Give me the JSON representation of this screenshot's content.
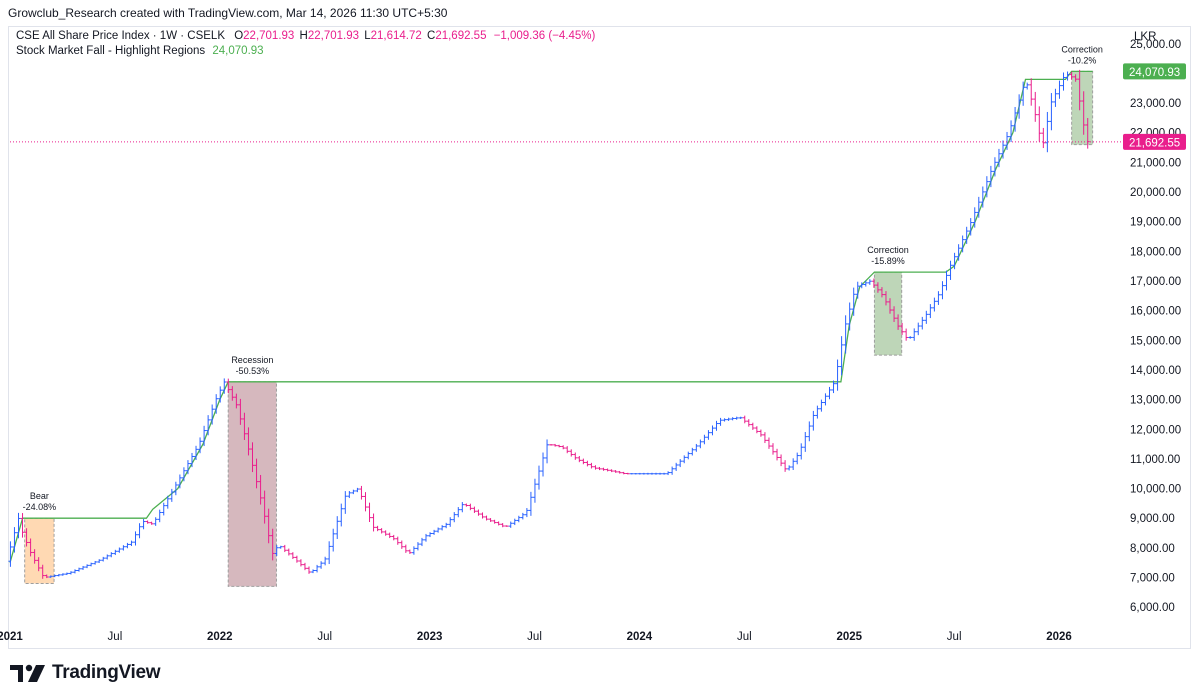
{
  "header": {
    "credit": "Growclub_Research created with TradingView.com, Mar 14, 2026 11:30 UTC+5:30"
  },
  "legend": {
    "symbol": "CSE All Share Price Index · 1W · CSELK",
    "open_label": "O",
    "open": "22,701.93",
    "high_label": "H",
    "high": "22,701.93",
    "low_label": "L",
    "low": "21,614.72",
    "close_label": "C",
    "close": "21,692.55",
    "change": "−1,009.36 (−4.45%)",
    "indicator_name": "Stock Market Fall - Highlight Regions",
    "indicator_value": "24,070.93"
  },
  "currency": "LKR",
  "branding": {
    "name": "TradingView"
  },
  "colors": {
    "up": "#2962ff",
    "down": "#e91e8c",
    "peak_line": "#4caf50",
    "bear_fill": "#ffcc99",
    "recession_fill": "#c8a0a8",
    "correction_fill": "#a8c8a0",
    "price_line": "#e91e8c",
    "indicator_tag": "#4caf50",
    "price_tag": "#e91e8c"
  },
  "chart_data": {
    "type": "ohlc",
    "title": "CSE All Share Price Index · 1W · CSELK",
    "ylabel": "LKR",
    "ylim": [
      5500,
      25600
    ],
    "xlim": [
      2021.0,
      2026.3
    ],
    "y_ticks": [
      "6,000.00",
      "7,000.00",
      "8,000.00",
      "9,000.00",
      "10,000.00",
      "11,000.00",
      "12,000.00",
      "13,000.00",
      "14,000.00",
      "15,000.00",
      "16,000.00",
      "17,000.00",
      "18,000.00",
      "19,000.00",
      "20,000.00",
      "21,000.00",
      "22,000.00",
      "23,000.00",
      "24,000.00",
      "25,000.00"
    ],
    "x_ticks": [
      {
        "t": 2021.0,
        "label": "2021",
        "bold": true
      },
      {
        "t": 2021.5,
        "label": "Jul",
        "bold": false
      },
      {
        "t": 2022.0,
        "label": "2022",
        "bold": true
      },
      {
        "t": 2022.5,
        "label": "Jul",
        "bold": false
      },
      {
        "t": 2023.0,
        "label": "2023",
        "bold": true
      },
      {
        "t": 2023.5,
        "label": "Jul",
        "bold": false
      },
      {
        "t": 2024.0,
        "label": "2024",
        "bold": true
      },
      {
        "t": 2024.5,
        "label": "Jul",
        "bold": false
      },
      {
        "t": 2025.0,
        "label": "2025",
        "bold": true
      },
      {
        "t": 2025.5,
        "label": "Jul",
        "bold": false
      },
      {
        "t": 2026.0,
        "label": "2026",
        "bold": true
      }
    ],
    "price_path": [
      [
        2021.0,
        7500
      ],
      [
        2021.06,
        9000
      ],
      [
        2021.08,
        8500
      ],
      [
        2021.12,
        7800
      ],
      [
        2021.18,
        7000
      ],
      [
        2021.22,
        7050
      ],
      [
        2021.3,
        7150
      ],
      [
        2021.45,
        7600
      ],
      [
        2021.6,
        8200
      ],
      [
        2021.65,
        8900
      ],
      [
        2021.7,
        8800
      ],
      [
        2021.8,
        10000
      ],
      [
        2021.92,
        11500
      ],
      [
        2022.0,
        13000
      ],
      [
        2022.04,
        13600
      ],
      [
        2022.1,
        12800
      ],
      [
        2022.15,
        11500
      ],
      [
        2022.22,
        9500
      ],
      [
        2022.27,
        7800
      ],
      [
        2022.3,
        8100
      ],
      [
        2022.38,
        7600
      ],
      [
        2022.45,
        7150
      ],
      [
        2022.52,
        7600
      ],
      [
        2022.62,
        9800
      ],
      [
        2022.68,
        10000
      ],
      [
        2022.75,
        8700
      ],
      [
        2022.85,
        8300
      ],
      [
        2022.92,
        7800
      ],
      [
        2023.0,
        8400
      ],
      [
        2023.1,
        8800
      ],
      [
        2023.18,
        9500
      ],
      [
        2023.28,
        9000
      ],
      [
        2023.38,
        8700
      ],
      [
        2023.48,
        9200
      ],
      [
        2023.58,
        11500
      ],
      [
        2023.65,
        11400
      ],
      [
        2023.72,
        11000
      ],
      [
        2023.8,
        10700
      ],
      [
        2023.88,
        10600
      ],
      [
        2023.95,
        10500
      ],
      [
        2024.0,
        10500
      ],
      [
        2024.15,
        10500
      ],
      [
        2024.3,
        11500
      ],
      [
        2024.4,
        12300
      ],
      [
        2024.5,
        12400
      ],
      [
        2024.6,
        11800
      ],
      [
        2024.72,
        10600
      ],
      [
        2024.78,
        11200
      ],
      [
        2024.85,
        12500
      ],
      [
        2024.95,
        13600
      ],
      [
        2025.0,
        15500
      ],
      [
        2025.05,
        16800
      ],
      [
        2025.12,
        17000
      ],
      [
        2025.18,
        16500
      ],
      [
        2025.25,
        15500
      ],
      [
        2025.3,
        15000
      ],
      [
        2025.38,
        15800
      ],
      [
        2025.45,
        16600
      ],
      [
        2025.5,
        17500
      ],
      [
        2025.6,
        19000
      ],
      [
        2025.7,
        20800
      ],
      [
        2025.78,
        22000
      ],
      [
        2025.86,
        23800
      ],
      [
        2025.9,
        22800
      ],
      [
        2025.94,
        21500
      ],
      [
        2025.98,
        23000
      ],
      [
        2026.05,
        24000
      ],
      [
        2026.1,
        23800
      ],
      [
        2026.15,
        21700
      ]
    ],
    "peak_line": [
      [
        2021.0,
        7500
      ],
      [
        2021.06,
        9000
      ],
      [
        2021.65,
        9000
      ],
      [
        2021.68,
        9300
      ],
      [
        2021.8,
        10000
      ],
      [
        2021.92,
        11500
      ],
      [
        2022.0,
        13000
      ],
      [
        2022.04,
        13600
      ],
      [
        2024.96,
        13600
      ],
      [
        2025.0,
        15500
      ],
      [
        2025.05,
        16800
      ],
      [
        2025.12,
        17300
      ],
      [
        2025.46,
        17300
      ],
      [
        2025.5,
        17500
      ],
      [
        2025.6,
        19000
      ],
      [
        2025.7,
        20800
      ],
      [
        2025.78,
        22000
      ],
      [
        2025.84,
        23800
      ],
      [
        2026.03,
        23800
      ],
      [
        2026.06,
        24070
      ],
      [
        2026.16,
        24070
      ]
    ],
    "regions": [
      {
        "name": "Bear",
        "label": "Bear",
        "pct": "-24.08%",
        "t0": 2021.07,
        "t1": 2021.21,
        "high": 9000,
        "low": 6800,
        "kind": "bear"
      },
      {
        "name": "Recession",
        "label": "Recession",
        "pct": "-50.53%",
        "t0": 2022.04,
        "t1": 2022.27,
        "high": 13600,
        "low": 6700,
        "kind": "recession"
      },
      {
        "name": "Correction 2025",
        "label": "Correction",
        "pct": "-15.89%",
        "t0": 2025.12,
        "t1": 2025.25,
        "high": 17300,
        "low": 14500,
        "kind": "correction"
      },
      {
        "name": "Correction 2026",
        "label": "Correction",
        "pct": "-10.2%",
        "t0": 2026.06,
        "t1": 2026.16,
        "high": 24070,
        "low": 21600,
        "kind": "correction"
      }
    ],
    "last_price": 21692.55,
    "indicator_last": 24070.93,
    "tags": {
      "indicator": "24,070.93",
      "price": "21,692.55"
    }
  }
}
